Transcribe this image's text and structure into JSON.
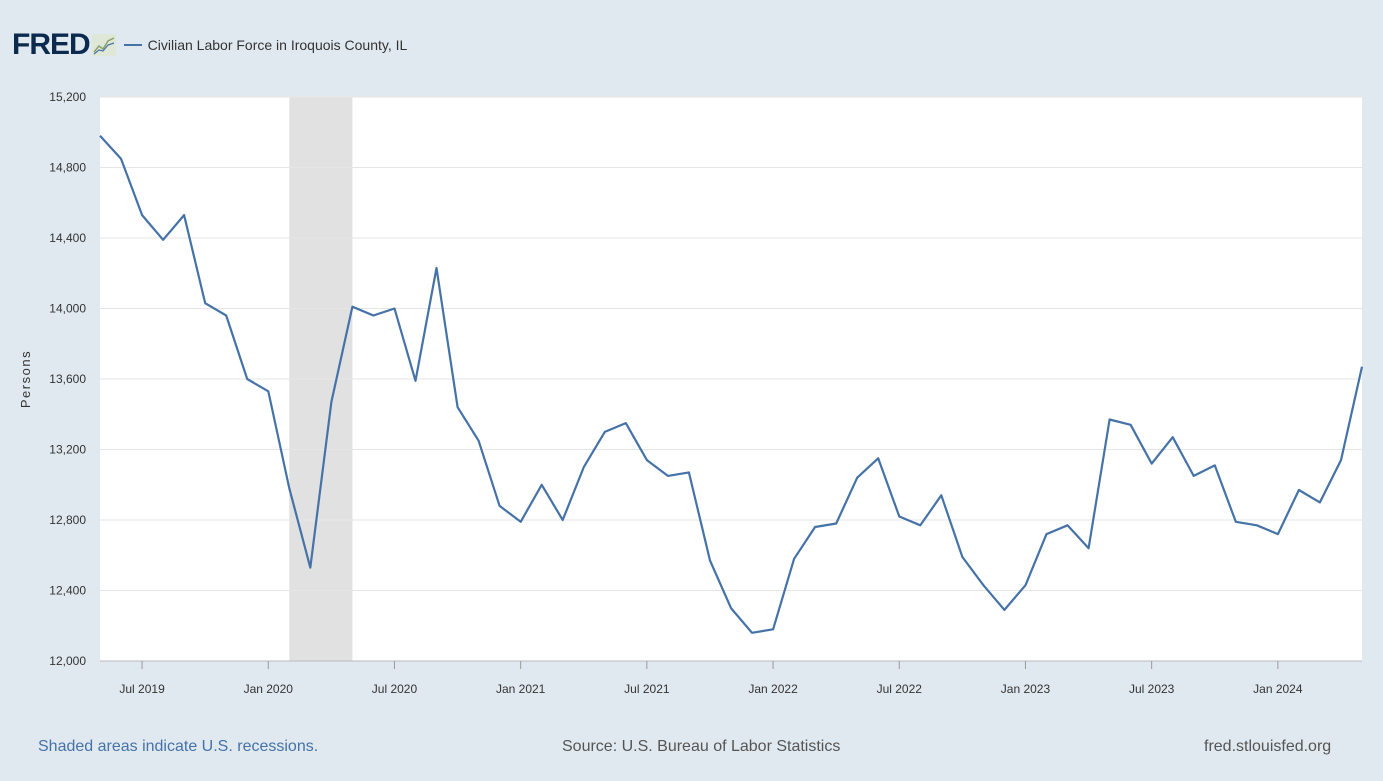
{
  "header": {
    "logo_text": "FRED",
    "logo_icon": "chart-line-icon",
    "series_label": "Civilian Labor Force in Iroquois County, IL"
  },
  "footer": {
    "recession_note": "Shaded areas indicate U.S. recessions.",
    "source": "Source: U.S. Bureau of Labor Statistics",
    "site": "fred.stlouisfed.org"
  },
  "colors": {
    "series": "#4572a7",
    "background": "#e1e9f0",
    "plot_background": "#ffffff",
    "recession_shade": "#e1e1e1",
    "logo": "#0c2a4d"
  },
  "chart_data": {
    "type": "line",
    "title": "",
    "xlabel": "",
    "ylabel": "Persons",
    "ylim": [
      12000,
      15200
    ],
    "yticks": [
      12000,
      12400,
      12800,
      13200,
      13600,
      14000,
      14400,
      14800,
      15200
    ],
    "ytick_labels": [
      "12,000",
      "12,400",
      "12,800",
      "13,200",
      "13,600",
      "14,000",
      "14,400",
      "14,800",
      "15,200"
    ],
    "xlim": [
      "2019-05",
      "2024-05"
    ],
    "xticks": [
      "2019-07",
      "2020-01",
      "2020-07",
      "2021-01",
      "2021-07",
      "2022-01",
      "2022-07",
      "2023-01",
      "2023-07",
      "2024-01"
    ],
    "xtick_labels": [
      "Jul 2019",
      "Jan 2020",
      "Jul 2020",
      "Jan 2021",
      "Jul 2021",
      "Jan 2022",
      "Jul 2022",
      "Jan 2023",
      "Jul 2023",
      "Jan 2024"
    ],
    "grid": true,
    "legend_position": "top-left",
    "recessions": [
      {
        "start": "2020-02",
        "end": "2020-04"
      }
    ],
    "series": [
      {
        "name": "Civilian Labor Force in Iroquois County, IL",
        "x": [
          "2019-05",
          "2019-06",
          "2019-07",
          "2019-08",
          "2019-09",
          "2019-10",
          "2019-11",
          "2019-12",
          "2020-01",
          "2020-02",
          "2020-03",
          "2020-04",
          "2020-05",
          "2020-06",
          "2020-07",
          "2020-08",
          "2020-09",
          "2020-10",
          "2020-11",
          "2020-12",
          "2021-01",
          "2021-02",
          "2021-03",
          "2021-04",
          "2021-05",
          "2021-06",
          "2021-07",
          "2021-08",
          "2021-09",
          "2021-10",
          "2021-11",
          "2021-12",
          "2022-01",
          "2022-02",
          "2022-03",
          "2022-04",
          "2022-05",
          "2022-06",
          "2022-07",
          "2022-08",
          "2022-09",
          "2022-10",
          "2022-11",
          "2022-12",
          "2023-01",
          "2023-02",
          "2023-03",
          "2023-04",
          "2023-05",
          "2023-06",
          "2023-07",
          "2023-08",
          "2023-09",
          "2023-10",
          "2023-11",
          "2023-12",
          "2024-01",
          "2024-02",
          "2024-03",
          "2024-04",
          "2024-05"
        ],
        "values": [
          14980,
          14850,
          14530,
          14390,
          14530,
          14030,
          13960,
          13600,
          13530,
          12980,
          12530,
          13470,
          14010,
          13960,
          14000,
          13590,
          14230,
          13440,
          13250,
          12880,
          12790,
          13000,
          12800,
          13100,
          13300,
          13350,
          13140,
          13050,
          13070,
          12570,
          12300,
          12160,
          12180,
          12580,
          12760,
          12780,
          13040,
          13150,
          12820,
          12770,
          12940,
          12590,
          12430,
          12290,
          12430,
          12720,
          12770,
          12640,
          13370,
          13340,
          13120,
          13270,
          13050,
          13110,
          12790,
          12770,
          12720,
          12970,
          12900,
          13140,
          13670
        ]
      }
    ]
  }
}
